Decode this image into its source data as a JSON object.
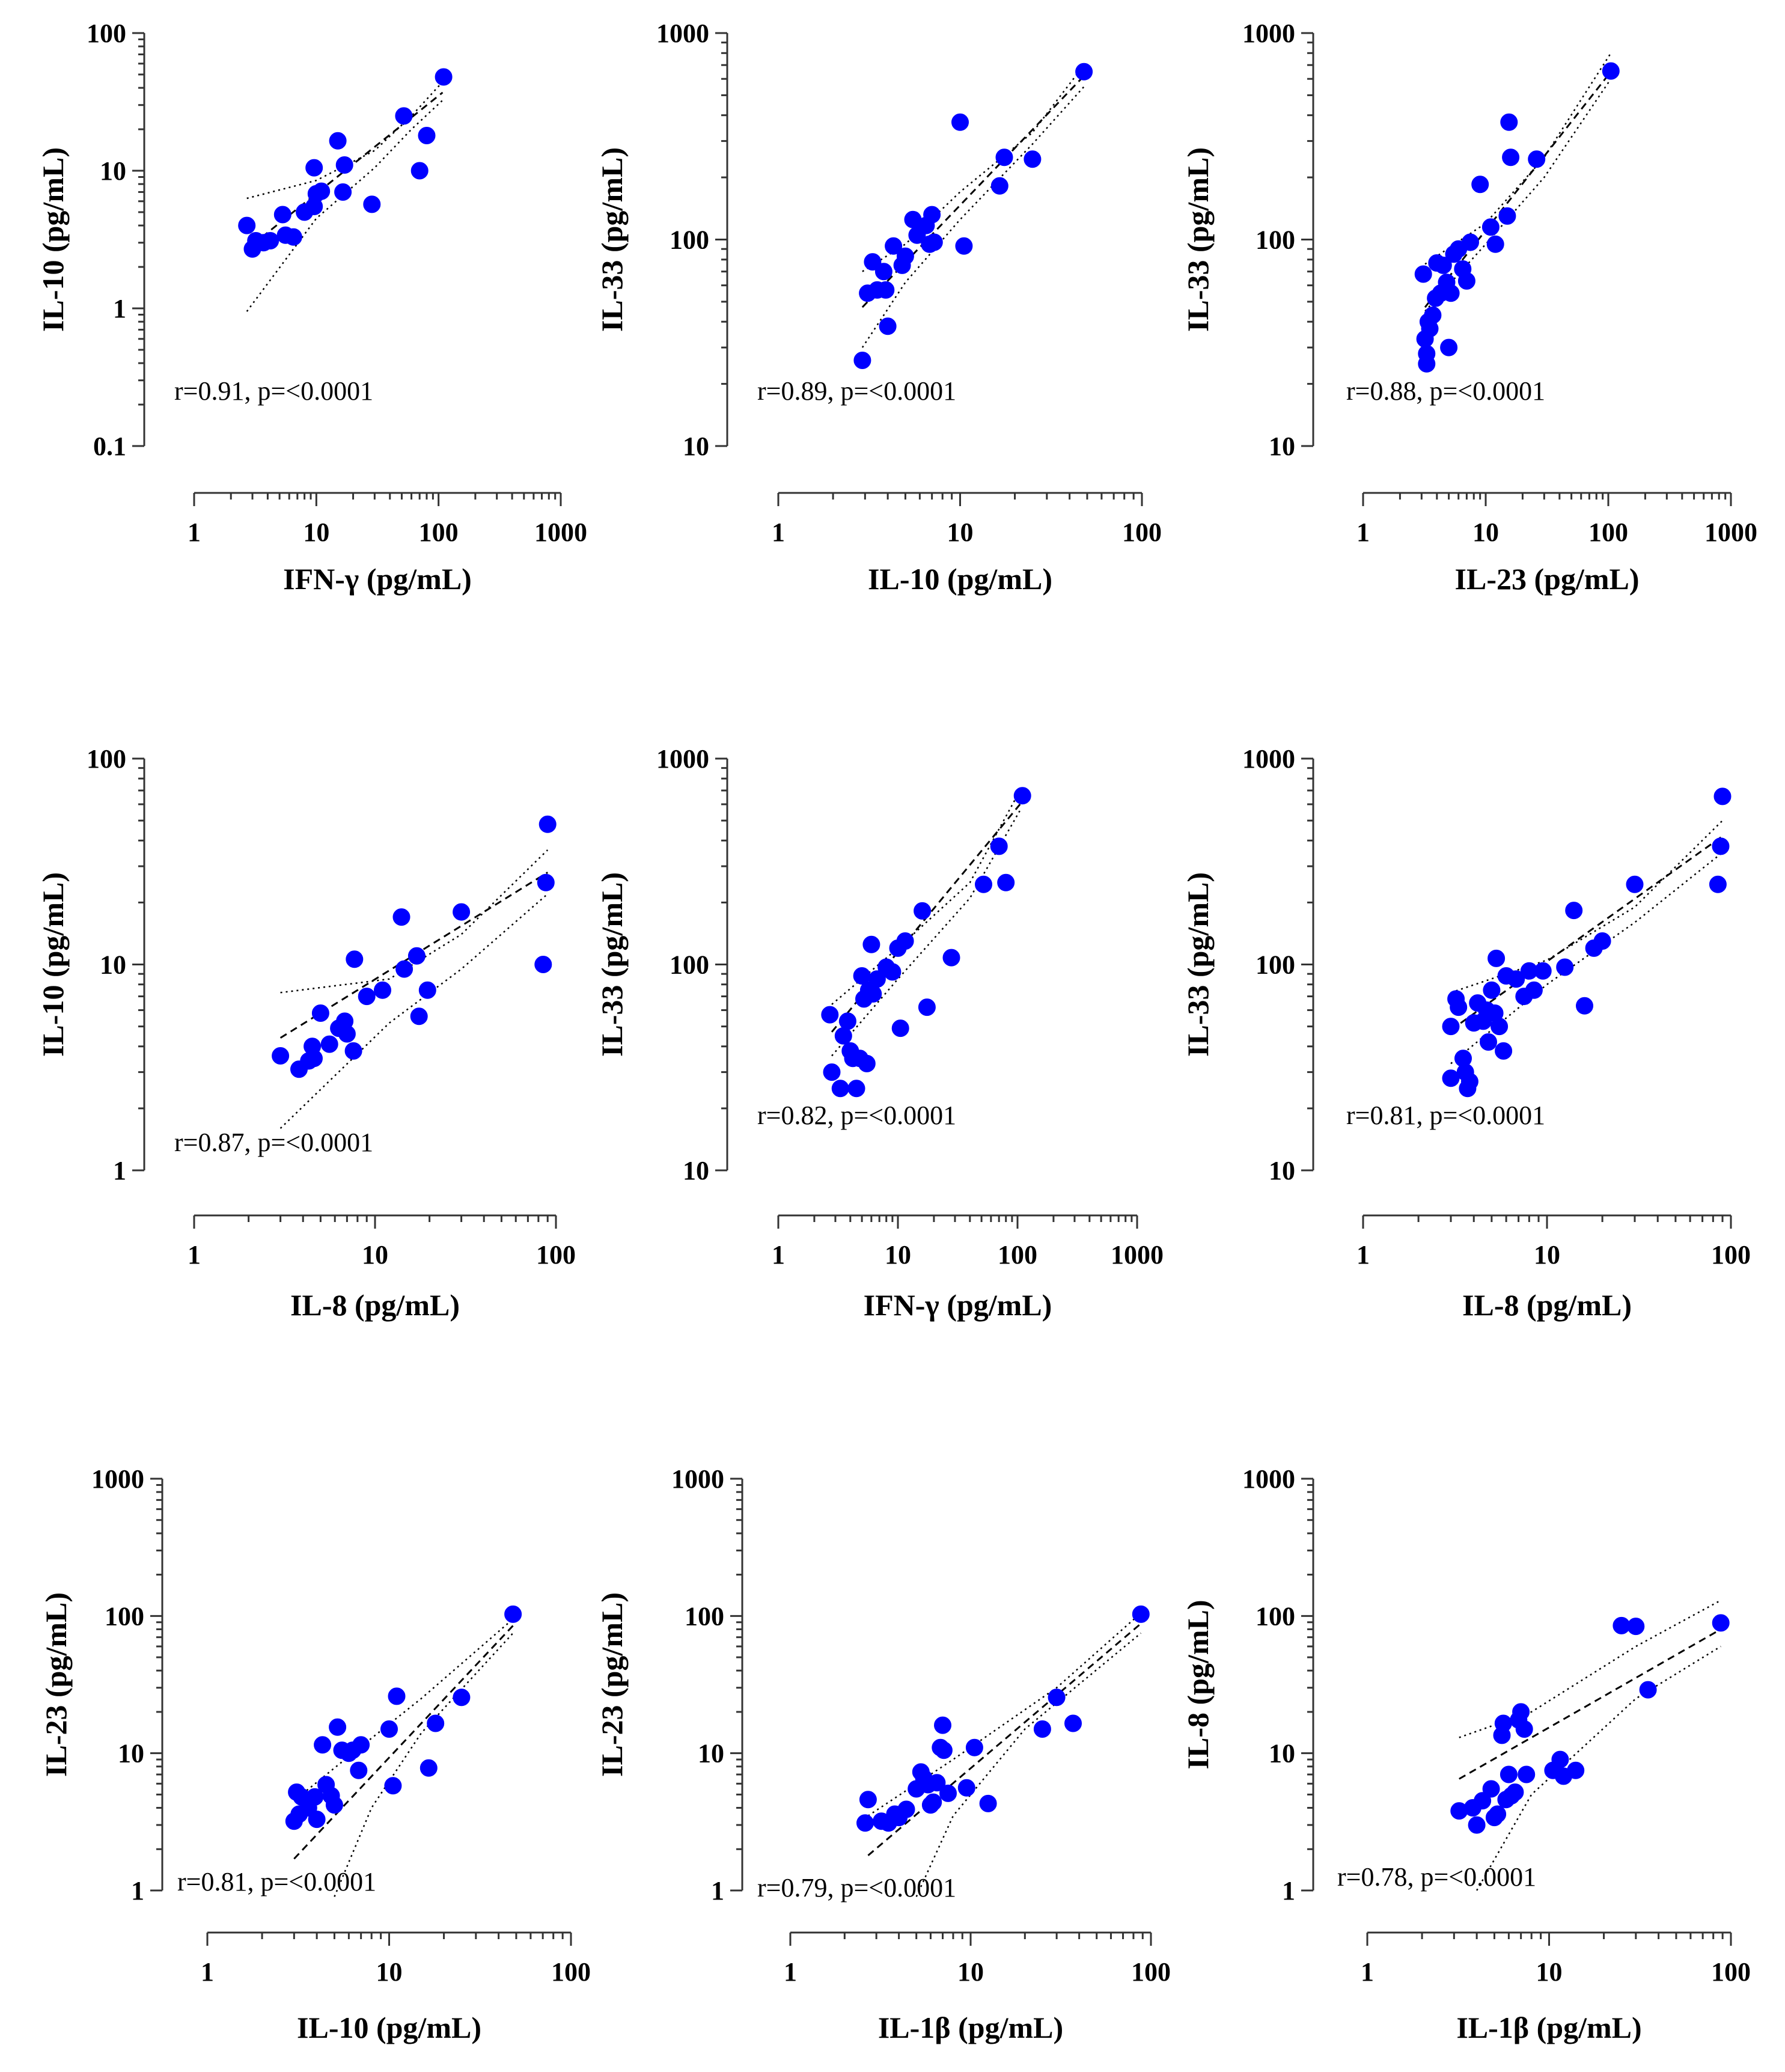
{
  "chart_data": [
    {
      "type": "scatter",
      "title": "",
      "xlabel": "IFN-γ (pg/mL)",
      "ylabel": "IL-10 (pg/mL)",
      "xscale": "log",
      "yscale": "log",
      "xlim": [
        1,
        1000
      ],
      "ylim": [
        0.1,
        100
      ],
      "xticks": [
        1,
        10,
        100,
        1000
      ],
      "xtick_labels": [
        "1",
        "10",
        "100",
        "1000"
      ],
      "yticks": [
        0.1,
        1,
        10,
        100
      ],
      "ytick_labels": [
        "0.1",
        "1",
        "10",
        "100"
      ],
      "annotation": "r=0.91,  p=<0.0001",
      "fit": {
        "x1": 3,
        "y1": 2.9,
        "x2": 108,
        "y2": 37
      },
      "ci_upper": [
        [
          2.7,
          6.3
        ],
        [
          10,
          8.5
        ],
        [
          30,
          14
        ],
        [
          60,
          25
        ],
        [
          110,
          45
        ]
      ],
      "ci_lower": [
        [
          2.7,
          0.95
        ],
        [
          10,
          4.5
        ],
        [
          30,
          10.5
        ],
        [
          60,
          20
        ],
        [
          110,
          33
        ]
      ],
      "x": [
        2.7,
        3,
        3.2,
        3.7,
        4.2,
        5.3,
        5.6,
        6.5,
        8,
        9.6,
        9.6,
        10,
        11,
        15,
        16.5,
        17,
        28.5,
        52,
        70,
        80,
        110
      ],
      "y": [
        4,
        2.7,
        3.1,
        3,
        3.1,
        4.8,
        3.4,
        3.3,
        5,
        10.5,
        5.5,
        6.8,
        7.1,
        16.5,
        7,
        11,
        5.7,
        25,
        10,
        18,
        48
      ]
    },
    {
      "type": "scatter",
      "title": "",
      "xlabel": "IL-10 (pg/mL)",
      "ylabel": "IL-33 (pg/mL)",
      "xscale": "log",
      "yscale": "log",
      "xlim": [
        1,
        100
      ],
      "ylim": [
        10,
        1000
      ],
      "xticks": [
        1,
        10,
        100
      ],
      "xtick_labels": [
        "1",
        "10",
        "100"
      ],
      "yticks": [
        10,
        100,
        1000
      ],
      "ytick_labels": [
        "10",
        "100",
        "1000"
      ],
      "annotation": "r=0.89, p=<0.0001",
      "fit": {
        "x1": 2.9,
        "y1": 47,
        "x2": 48,
        "y2": 620
      },
      "ci_upper": [
        [
          2.9,
          70
        ],
        [
          5,
          95
        ],
        [
          10,
          170
        ],
        [
          25,
          330
        ],
        [
          48,
          700
        ]
      ],
      "ci_lower": [
        [
          2.9,
          30
        ],
        [
          5,
          62
        ],
        [
          10,
          125
        ],
        [
          25,
          290
        ],
        [
          48,
          550
        ]
      ],
      "x": [
        2.9,
        3.1,
        3.3,
        3.5,
        3.8,
        3.9,
        4,
        4.3,
        4.8,
        5,
        5.5,
        5.8,
        6.5,
        6.8,
        7,
        7.2,
        10,
        10.5,
        16.5,
        17.5,
        25,
        48
      ],
      "y": [
        26,
        55,
        78,
        57,
        70,
        57,
        38,
        93,
        75,
        83,
        125,
        105,
        117,
        95,
        132,
        97,
        370,
        93,
        182,
        250,
        245,
        650
      ]
    },
    {
      "type": "scatter",
      "title": "",
      "xlabel": "IL-23 (pg/mL)",
      "ylabel": "IL-33 (pg/mL)",
      "xscale": "log",
      "yscale": "log",
      "xlim": [
        1,
        1000
      ],
      "ylim": [
        10,
        1000
      ],
      "xticks": [
        1,
        10,
        100,
        1000
      ],
      "xtick_labels": [
        "1",
        "10",
        "100",
        "1000"
      ],
      "yticks": [
        10,
        100,
        1000
      ],
      "ytick_labels": [
        "10",
        "100",
        "1000"
      ],
      "annotation": "r=0.88, p=<0.0001",
      "fit": {
        "x1": 3.2,
        "y1": 47,
        "x2": 105,
        "y2": 650
      },
      "ci_upper": [
        [
          3.2,
          76
        ],
        [
          10,
          120
        ],
        [
          30,
          250
        ],
        [
          105,
          800
        ]
      ],
      "ci_lower": [
        [
          3.2,
          45
        ],
        [
          10,
          95
        ],
        [
          30,
          200
        ],
        [
          105,
          600
        ]
      ],
      "x": [
        3.1,
        3.2,
        3.3,
        3.3,
        3.4,
        3.5,
        3.7,
        3.9,
        4,
        4.3,
        4.5,
        4.8,
        5,
        5.2,
        5.5,
        6,
        6.5,
        7,
        7.5,
        9,
        11,
        12,
        15,
        15.5,
        16,
        26,
        105
      ],
      "y": [
        68,
        33,
        25,
        28,
        40,
        37,
        43,
        52,
        77,
        55,
        75,
        62,
        30,
        55,
        85,
        90,
        72,
        63,
        97,
        185,
        115,
        95,
        130,
        370,
        250,
        245,
        655
      ]
    },
    {
      "type": "scatter",
      "title": "",
      "xlabel": "IL-8 (pg/mL)",
      "ylabel": "IL-10 (pg/mL)",
      "xscale": "log",
      "yscale": "log",
      "xlim": [
        1,
        100
      ],
      "ylim": [
        1,
        100
      ],
      "xticks": [
        1,
        10,
        100
      ],
      "xtick_labels": [
        "1",
        "10",
        "100"
      ],
      "yticks": [
        1,
        10,
        100
      ],
      "ytick_labels": [
        "1",
        "10",
        "100"
      ],
      "annotation": "r=0.87, p=<0.0001",
      "fit": {
        "x1": 3,
        "y1": 4.4,
        "x2": 90,
        "y2": 28
      },
      "ci_upper": [
        [
          3,
          7.3
        ],
        [
          12,
          8.5
        ],
        [
          30,
          14
        ],
        [
          90,
          36
        ]
      ],
      "ci_lower": [
        [
          3,
          1.6
        ],
        [
          12,
          5.2
        ],
        [
          30,
          9.5
        ],
        [
          90,
          22
        ]
      ],
      "x": [
        3,
        3.8,
        4.3,
        4.5,
        4.6,
        5,
        5.6,
        6.3,
        6.8,
        7,
        7.6,
        7.7,
        9,
        11,
        14,
        14.5,
        17,
        17.5,
        19.5,
        30,
        85,
        88,
        90
      ],
      "y": [
        3.6,
        3.1,
        3.4,
        4,
        3.5,
        5.8,
        4.1,
        4.9,
        5.3,
        4.6,
        3.8,
        10.6,
        7,
        7.5,
        17,
        9.5,
        11,
        5.6,
        7.5,
        18,
        10,
        25,
        48
      ]
    },
    {
      "type": "scatter",
      "title": "",
      "xlabel": "IFN-γ (pg/mL)",
      "ylabel": "IL-33 (pg/mL)",
      "xscale": "log",
      "yscale": "log",
      "xlim": [
        1,
        1000
      ],
      "ylim": [
        10,
        1000
      ],
      "xticks": [
        1,
        10,
        100,
        1000
      ],
      "xtick_labels": [
        "1",
        "10",
        "100",
        "1000"
      ],
      "yticks": [
        10,
        100,
        1000
      ],
      "ytick_labels": [
        "10",
        "100",
        "1000"
      ],
      "annotation": "r=0.82, p=<0.0001",
      "fit": {
        "x1": 2.8,
        "y1": 47,
        "x2": 105,
        "y2": 600
      },
      "ci_upper": [
        [
          2.8,
          64
        ],
        [
          10,
          120
        ],
        [
          40,
          250
        ],
        [
          105,
          700
        ]
      ],
      "ci_lower": [
        [
          2.8,
          36
        ],
        [
          10,
          85
        ],
        [
          40,
          210
        ],
        [
          105,
          560
        ]
      ],
      "x": [
        2.7,
        2.8,
        3.3,
        3.5,
        3.8,
        4,
        4.2,
        4.5,
        4.8,
        5,
        5.2,
        5.5,
        5.7,
        6,
        6.2,
        6.7,
        8,
        9,
        10,
        10.5,
        11.5,
        16,
        17.5,
        28,
        52,
        70,
        80,
        110
      ],
      "y": [
        57,
        30,
        25,
        45,
        53,
        38,
        35,
        25,
        35,
        88,
        68,
        33,
        75,
        125,
        72,
        85,
        97,
        92,
        120,
        49,
        130,
        182,
        62,
        108,
        245,
        375,
        250,
        660
      ]
    },
    {
      "type": "scatter",
      "title": "",
      "xlabel": "IL-8  (pg/mL)",
      "ylabel": "IL-33 (pg/mL)",
      "xscale": "log",
      "yscale": "log",
      "xlim": [
        1,
        100
      ],
      "ylim": [
        10,
        1000
      ],
      "xticks": [
        1,
        10,
        100
      ],
      "xtick_labels": [
        "1",
        "10",
        "100"
      ],
      "yticks": [
        10,
        100,
        1000
      ],
      "ytick_labels": [
        "10",
        "100",
        "1000"
      ],
      "annotation": "r=0.81, p=<0.0001",
      "fit": {
        "x1": 3,
        "y1": 48,
        "x2": 90,
        "y2": 420
      },
      "ci_upper": [
        [
          3,
          73
        ],
        [
          10,
          105
        ],
        [
          30,
          190
        ],
        [
          90,
          500
        ]
      ],
      "ci_lower": [
        [
          3,
          33
        ],
        [
          10,
          80
        ],
        [
          30,
          160
        ],
        [
          90,
          350
        ]
      ],
      "x": [
        3,
        3,
        3.2,
        3.3,
        3.5,
        3.6,
        3.7,
        3.8,
        4,
        4.2,
        4.5,
        4.7,
        4.8,
        5,
        5.2,
        5.3,
        5.5,
        5.8,
        6,
        6.8,
        7.5,
        8,
        8.5,
        9.5,
        12.5,
        14,
        16,
        18,
        20,
        30,
        85,
        88,
        90
      ],
      "y": [
        50,
        28,
        68,
        62,
        35,
        30,
        25,
        27,
        52,
        65,
        53,
        60,
        42,
        75,
        58,
        107,
        50,
        38,
        88,
        85,
        70,
        93,
        75,
        93,
        97,
        183,
        63,
        120,
        130,
        245,
        245,
        375,
        655
      ]
    },
    {
      "type": "scatter",
      "title": "",
      "xlabel": "IL-10 (pg/mL)",
      "ylabel": "IL-23 (pg/mL)",
      "xscale": "log",
      "yscale": "log",
      "xlim": [
        1,
        100
      ],
      "ylim": [
        1,
        1000
      ],
      "xticks": [
        1,
        10,
        100
      ],
      "xtick_labels": [
        "1",
        "10",
        "100"
      ],
      "yticks": [
        1,
        10,
        100,
        1000
      ],
      "ytick_labels": [
        "1",
        "10",
        "100",
        "1000"
      ],
      "annotation": "r=0.81, p=<0.0001",
      "fit": {
        "x1": 3,
        "y1": 1.7,
        "x2": 48,
        "y2": 85
      },
      "ci_upper": [
        [
          3,
          4.5
        ],
        [
          6,
          9.5
        ],
        [
          15,
          25
        ],
        [
          48,
          95
        ]
      ],
      "ci_lower": [
        [
          5,
          0.9
        ],
        [
          8,
          4
        ],
        [
          15,
          14
        ],
        [
          48,
          75
        ]
      ],
      "x": [
        3,
        3.1,
        3.2,
        3.3,
        3.6,
        3.9,
        4,
        4.3,
        4.5,
        4.8,
        5,
        5.2,
        5.5,
        6,
        6.3,
        6.8,
        7,
        10,
        10.5,
        11,
        16.5,
        18,
        25,
        48
      ],
      "y": [
        3.2,
        5.2,
        3.6,
        4.8,
        4,
        4.8,
        3.3,
        11.5,
        5.9,
        4.9,
        4.2,
        15.5,
        10.5,
        10,
        10.5,
        7.5,
        11.5,
        15,
        5.8,
        26,
        7.8,
        16.5,
        25.5,
        103
      ]
    },
    {
      "type": "scatter",
      "title": "",
      "xlabel": "IL-1β (pg/mL)",
      "ylabel": "IL-23 (pg/mL)",
      "xscale": "log",
      "yscale": "log",
      "xlim": [
        1,
        100
      ],
      "ylim": [
        1,
        1000
      ],
      "xticks": [
        1,
        10,
        100
      ],
      "xtick_labels": [
        "1",
        "10",
        "100"
      ],
      "yticks": [
        1,
        10,
        100,
        1000
      ],
      "ytick_labels": [
        "1",
        "10",
        "100",
        "1000"
      ],
      "annotation": "r=0.79, p=<0.0001",
      "fit": {
        "x1": 2.7,
        "y1": 1.8,
        "x2": 88,
        "y2": 88
      },
      "ci_upper": [
        [
          2.7,
          3.5
        ],
        [
          8,
          9
        ],
        [
          30,
          30
        ],
        [
          88,
          105
        ]
      ],
      "ci_lower": [
        [
          5,
          0.9
        ],
        [
          8,
          3.5
        ],
        [
          20,
          15
        ],
        [
          88,
          75
        ]
      ],
      "x": [
        2.6,
        2.7,
        3.2,
        3.5,
        3.8,
        4,
        4.4,
        5,
        5.3,
        5.5,
        5.8,
        6,
        6.2,
        6.5,
        6.8,
        7,
        7.1,
        7.5,
        9.5,
        10.5,
        12.5,
        25,
        30,
        37,
        88
      ],
      "y": [
        3.1,
        4.6,
        3.2,
        3.1,
        3.6,
        3.4,
        3.9,
        5.5,
        7.3,
        6.6,
        5.9,
        4.2,
        4.4,
        6.1,
        11,
        16,
        10.5,
        5.1,
        5.6,
        11,
        4.3,
        15,
        25.5,
        16.5,
        103
      ]
    },
    {
      "type": "scatter",
      "title": "",
      "xlabel": "IL-1β (pg/mL)",
      "ylabel": "IL-8 (pg/mL)",
      "xscale": "log",
      "yscale": "log",
      "xlim": [
        1,
        100
      ],
      "ylim": [
        1,
        1000
      ],
      "xticks": [
        1,
        10,
        100
      ],
      "xtick_labels": [
        "1",
        "10",
        "100"
      ],
      "yticks": [
        1,
        10,
        100,
        1000
      ],
      "ytick_labels": [
        "1",
        "10",
        "100",
        "1000"
      ],
      "annotation": "r=0.78, p=<0.0001",
      "fit": {
        "x1": 3.2,
        "y1": 6.5,
        "x2": 88,
        "y2": 80
      },
      "ci_upper": [
        [
          3.2,
          13
        ],
        [
          8,
          20
        ],
        [
          30,
          60
        ],
        [
          88,
          130
        ]
      ],
      "ci_lower": [
        [
          4,
          1
        ],
        [
          8,
          5
        ],
        [
          30,
          25
        ],
        [
          88,
          60
        ]
      ],
      "x": [
        3.2,
        3.8,
        4,
        4.3,
        4.8,
        5,
        5.2,
        5.5,
        5.6,
        5.8,
        6,
        6.2,
        6.5,
        6.8,
        7,
        7.3,
        7.5,
        10.5,
        11.5,
        12,
        14,
        25,
        30,
        35,
        88
      ],
      "y": [
        3.8,
        4,
        3,
        4.5,
        5.5,
        3.4,
        3.6,
        13.5,
        16.5,
        4.6,
        7,
        4.9,
        5.2,
        17.5,
        20,
        15,
        7,
        7.5,
        9,
        6.8,
        7.5,
        85,
        84,
        29,
        89
      ]
    }
  ]
}
